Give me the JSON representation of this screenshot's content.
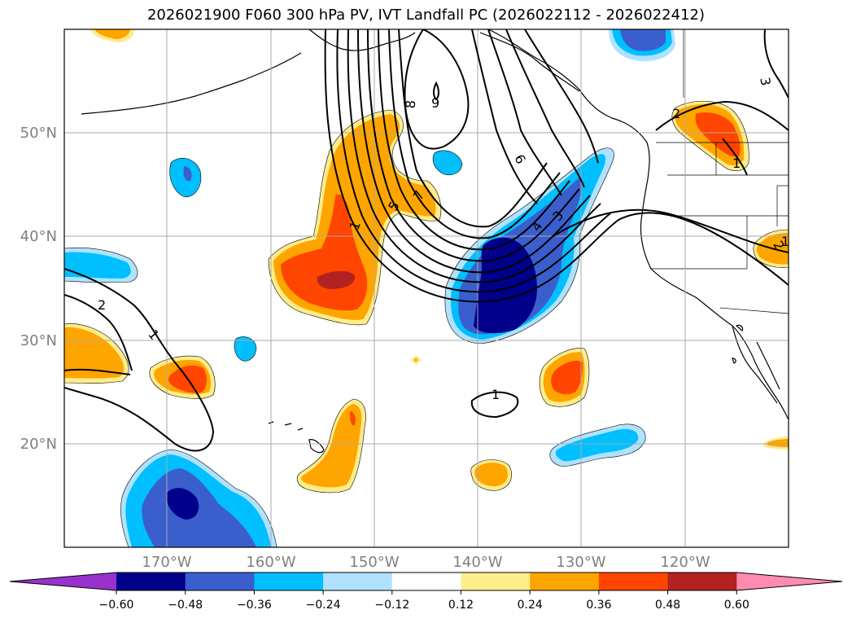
{
  "title": "2026021900 F060 300 hPa PV, IVT Landfall PC (2026022112 - 2026022412)",
  "latitude_labels": [
    "50°N",
    "40°N",
    "30°N",
    "20°N"
  ],
  "longitude_labels": [
    "170°W",
    "160°W",
    "150°W",
    "140°W",
    "130°W",
    "120°W"
  ],
  "contour_labels": [
    "9",
    "8",
    "7",
    "6",
    "5",
    "4",
    "3",
    "2",
    "1",
    "1",
    "1",
    "2",
    "3",
    "2",
    "1",
    "1"
  ],
  "colorbar": {
    "tick_labels": [
      "−0.60",
      "−0.48",
      "−0.36",
      "−0.24",
      "−0.12",
      "0.12",
      "0.24",
      "0.36",
      "0.48",
      "0.60"
    ],
    "colors": [
      "#9932cc",
      "#00008b",
      "#3a5fcd",
      "#00bfff",
      "#b0e2ff",
      "#ffffff",
      "#ffec8b",
      "#ffa500",
      "#ff4500",
      "#b22222",
      "#ff8cb0"
    ],
    "extend": "both"
  },
  "colors": {
    "neg_light": "#b0e2ff",
    "neg_cyan": "#00bfff",
    "neg_blue": "#3a5fcd",
    "neg_navy": "#00008b",
    "pos_yellow": "#ffec8b",
    "pos_orange": "#ffa500",
    "pos_red": "#ff4500",
    "pos_darkred": "#b22222",
    "contour": "#000000",
    "grid": "#a9a9a9"
  }
}
